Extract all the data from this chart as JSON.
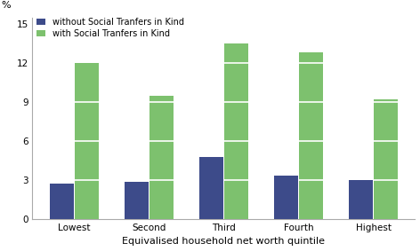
{
  "categories": [
    "Lowest",
    "Second",
    "Third",
    "Fourth",
    "Highest"
  ],
  "without_stik": [
    2.7,
    2.85,
    4.8,
    3.35,
    3.0
  ],
  "with_stik": [
    12.0,
    9.5,
    13.5,
    12.8,
    9.2
  ],
  "color_without": "#3d4b8a",
  "color_with": "#7dc16e",
  "ylabel": "%",
  "xlabel": "Equivalised household net worth quintile",
  "legend_without": "without Social Tranfers in Kind",
  "legend_with": "with Social Tranfers in Kind",
  "yticks": [
    0,
    3,
    6,
    9,
    12,
    15
  ],
  "ylim": [
    0,
    15.5
  ],
  "bar_width": 0.32,
  "bar_gap": 0.01,
  "grid_lines": [
    3,
    6,
    9,
    12
  ],
  "grid_color": "#ffffff",
  "bg_color": "#ffffff",
  "spine_color": "#aaaaaa",
  "tick_fontsize": 7.5,
  "label_fontsize": 8,
  "legend_fontsize": 7
}
